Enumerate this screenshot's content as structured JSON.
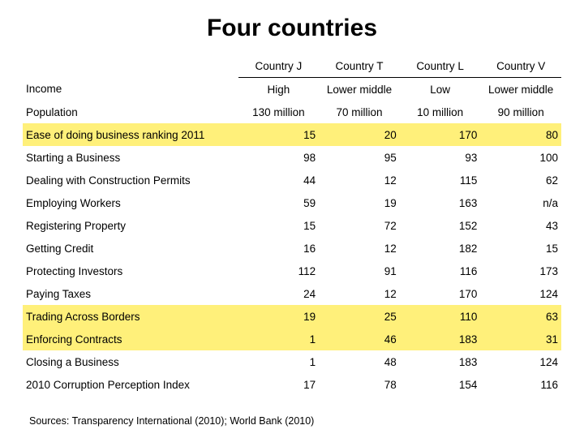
{
  "title": "Four countries",
  "highlight_color": "#fff07a",
  "columns": [
    "Country J",
    "Country T",
    "Country L",
    "Country V"
  ],
  "column_widths_pct": [
    40,
    15,
    15,
    15,
    15
  ],
  "rows": [
    {
      "label": "Income",
      "values": [
        "High",
        "Lower middle",
        "Low",
        "Lower middle"
      ],
      "align": "center",
      "highlight": false
    },
    {
      "label": "Population",
      "values": [
        "130 million",
        "70 million",
        "10 million",
        "90 million"
      ],
      "align": "center",
      "highlight": false
    },
    {
      "label": "Ease of doing business ranking 2011",
      "values": [
        "15",
        "20",
        "170",
        "80"
      ],
      "align": "right",
      "highlight": true
    },
    {
      "label": "Starting a Business",
      "values": [
        "98",
        "95",
        "93",
        "100"
      ],
      "align": "right",
      "highlight": false
    },
    {
      "label": "Dealing with Construction Permits",
      "values": [
        "44",
        "12",
        "115",
        "62"
      ],
      "align": "right",
      "highlight": false
    },
    {
      "label": "Employing Workers",
      "values": [
        "59",
        "19",
        "163",
        "n/a"
      ],
      "align": "right",
      "highlight": false
    },
    {
      "label": "Registering Property",
      "values": [
        "15",
        "72",
        "152",
        "43"
      ],
      "align": "right",
      "highlight": false
    },
    {
      "label": "Getting Credit",
      "values": [
        "16",
        "12",
        "182",
        "15"
      ],
      "align": "right",
      "highlight": false
    },
    {
      "label": "Protecting Investors",
      "values": [
        "112",
        "91",
        "116",
        "173"
      ],
      "align": "right",
      "highlight": false
    },
    {
      "label": "Paying Taxes",
      "values": [
        "24",
        "12",
        "170",
        "124"
      ],
      "align": "right",
      "highlight": false
    },
    {
      "label": "Trading Across Borders",
      "values": [
        "19",
        "25",
        "110",
        "63"
      ],
      "align": "right",
      "highlight": true
    },
    {
      "label": "Enforcing Contracts",
      "values": [
        "1",
        "46",
        "183",
        "31"
      ],
      "align": "right",
      "highlight": true
    },
    {
      "label": "Closing a Business",
      "values": [
        "1",
        "48",
        "183",
        "124"
      ],
      "align": "right",
      "highlight": false
    },
    {
      "label": "2010 Corruption Perception Index",
      "values": [
        "17",
        "78",
        "154",
        "116"
      ],
      "align": "right",
      "highlight": false
    }
  ],
  "sources": "Sources: Transparency International (2010); World Bank (2010)"
}
